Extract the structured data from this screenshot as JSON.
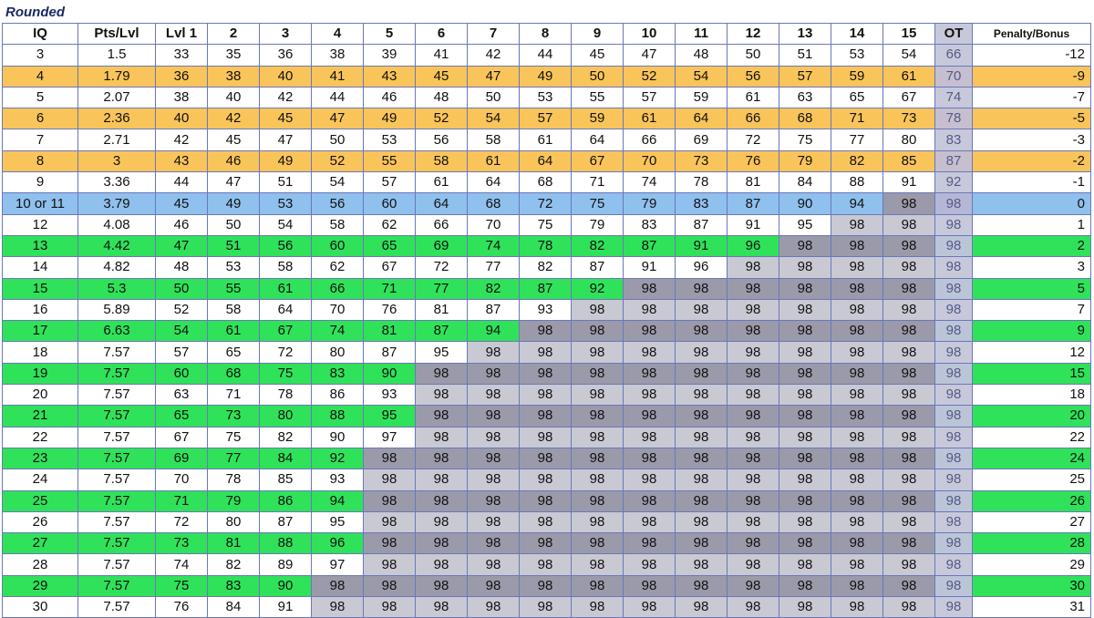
{
  "caption": "Rounded",
  "headers": [
    "IQ",
    "Pts/Lvl",
    "Lvl 1",
    "2",
    "3",
    "4",
    "5",
    "6",
    "7",
    "8",
    "9",
    "10",
    "11",
    "12",
    "13",
    "14",
    "15",
    "OT",
    "Penalty/Bonus"
  ],
  "rows": [
    {
      "style": "white",
      "cells": [
        "3",
        "1.5",
        "33",
        "35",
        "36",
        "38",
        "39",
        "41",
        "42",
        "44",
        "45",
        "47",
        "48",
        "50",
        "51",
        "53",
        "54",
        "66",
        "-12"
      ]
    },
    {
      "style": "orange",
      "cells": [
        "4",
        "1.79",
        "36",
        "38",
        "40",
        "41",
        "43",
        "45",
        "47",
        "49",
        "50",
        "52",
        "54",
        "56",
        "57",
        "59",
        "61",
        "70",
        "-9"
      ]
    },
    {
      "style": "white",
      "cells": [
        "5",
        "2.07",
        "38",
        "40",
        "42",
        "44",
        "46",
        "48",
        "50",
        "53",
        "55",
        "57",
        "59",
        "61",
        "63",
        "65",
        "67",
        "74",
        "-7"
      ]
    },
    {
      "style": "orange",
      "cells": [
        "6",
        "2.36",
        "40",
        "42",
        "45",
        "47",
        "49",
        "52",
        "54",
        "57",
        "59",
        "61",
        "64",
        "66",
        "68",
        "71",
        "73",
        "78",
        "-5"
      ]
    },
    {
      "style": "white",
      "cells": [
        "7",
        "2.71",
        "42",
        "45",
        "47",
        "50",
        "53",
        "56",
        "58",
        "61",
        "64",
        "66",
        "69",
        "72",
        "75",
        "77",
        "80",
        "83",
        "-3"
      ]
    },
    {
      "style": "orange",
      "cells": [
        "8",
        "3",
        "43",
        "46",
        "49",
        "52",
        "55",
        "58",
        "61",
        "64",
        "67",
        "70",
        "73",
        "76",
        "79",
        "82",
        "85",
        "87",
        "-2"
      ]
    },
    {
      "style": "white",
      "cells": [
        "9",
        "3.36",
        "44",
        "47",
        "51",
        "54",
        "57",
        "61",
        "64",
        "68",
        "71",
        "74",
        "78",
        "81",
        "84",
        "88",
        "91",
        "92",
        "-1"
      ]
    },
    {
      "style": "blue",
      "cells": [
        "10 or 11",
        "3.79",
        "45",
        "49",
        "53",
        "56",
        "60",
        "64",
        "68",
        "72",
        "75",
        "79",
        "83",
        "87",
        "90",
        "94",
        "98",
        "98",
        "0"
      ]
    },
    {
      "style": "white",
      "cells": [
        "12",
        "4.08",
        "46",
        "50",
        "54",
        "58",
        "62",
        "66",
        "70",
        "75",
        "79",
        "83",
        "87",
        "91",
        "95",
        "98",
        "98",
        "98",
        "1"
      ]
    },
    {
      "style": "green",
      "cells": [
        "13",
        "4.42",
        "47",
        "51",
        "56",
        "60",
        "65",
        "69",
        "74",
        "78",
        "82",
        "87",
        "91",
        "96",
        "98",
        "98",
        "98",
        "98",
        "2"
      ]
    },
    {
      "style": "white",
      "cells": [
        "14",
        "4.82",
        "48",
        "53",
        "58",
        "62",
        "67",
        "72",
        "77",
        "82",
        "87",
        "91",
        "96",
        "98",
        "98",
        "98",
        "98",
        "98",
        "3"
      ]
    },
    {
      "style": "green",
      "cells": [
        "15",
        "5.3",
        "50",
        "55",
        "61",
        "66",
        "71",
        "77",
        "82",
        "87",
        "92",
        "98",
        "98",
        "98",
        "98",
        "98",
        "98",
        "98",
        "5"
      ]
    },
    {
      "style": "white",
      "cells": [
        "16",
        "5.89",
        "52",
        "58",
        "64",
        "70",
        "76",
        "81",
        "87",
        "93",
        "98",
        "98",
        "98",
        "98",
        "98",
        "98",
        "98",
        "98",
        "7"
      ]
    },
    {
      "style": "green",
      "cells": [
        "17",
        "6.63",
        "54",
        "61",
        "67",
        "74",
        "81",
        "87",
        "94",
        "98",
        "98",
        "98",
        "98",
        "98",
        "98",
        "98",
        "98",
        "98",
        "9"
      ]
    },
    {
      "style": "white",
      "cells": [
        "18",
        "7.57",
        "57",
        "65",
        "72",
        "80",
        "87",
        "95",
        "98",
        "98",
        "98",
        "98",
        "98",
        "98",
        "98",
        "98",
        "98",
        "98",
        "12"
      ]
    },
    {
      "style": "green",
      "cells": [
        "19",
        "7.57",
        "60",
        "68",
        "75",
        "83",
        "90",
        "98",
        "98",
        "98",
        "98",
        "98",
        "98",
        "98",
        "98",
        "98",
        "98",
        "98",
        "15"
      ]
    },
    {
      "style": "white",
      "cells": [
        "20",
        "7.57",
        "63",
        "71",
        "78",
        "86",
        "93",
        "98",
        "98",
        "98",
        "98",
        "98",
        "98",
        "98",
        "98",
        "98",
        "98",
        "98",
        "18"
      ]
    },
    {
      "style": "green",
      "cells": [
        "21",
        "7.57",
        "65",
        "73",
        "80",
        "88",
        "95",
        "98",
        "98",
        "98",
        "98",
        "98",
        "98",
        "98",
        "98",
        "98",
        "98",
        "98",
        "20"
      ]
    },
    {
      "style": "white",
      "cells": [
        "22",
        "7.57",
        "67",
        "75",
        "82",
        "90",
        "97",
        "98",
        "98",
        "98",
        "98",
        "98",
        "98",
        "98",
        "98",
        "98",
        "98",
        "98",
        "22"
      ]
    },
    {
      "style": "green",
      "cells": [
        "23",
        "7.57",
        "69",
        "77",
        "84",
        "92",
        "98",
        "98",
        "98",
        "98",
        "98",
        "98",
        "98",
        "98",
        "98",
        "98",
        "98",
        "98",
        "24"
      ]
    },
    {
      "style": "white",
      "cells": [
        "24",
        "7.57",
        "70",
        "78",
        "85",
        "93",
        "98",
        "98",
        "98",
        "98",
        "98",
        "98",
        "98",
        "98",
        "98",
        "98",
        "98",
        "98",
        "25"
      ]
    },
    {
      "style": "green",
      "cells": [
        "25",
        "7.57",
        "71",
        "79",
        "86",
        "94",
        "98",
        "98",
        "98",
        "98",
        "98",
        "98",
        "98",
        "98",
        "98",
        "98",
        "98",
        "98",
        "26"
      ]
    },
    {
      "style": "white",
      "cells": [
        "26",
        "7.57",
        "72",
        "80",
        "87",
        "95",
        "98",
        "98",
        "98",
        "98",
        "98",
        "98",
        "98",
        "98",
        "98",
        "98",
        "98",
        "98",
        "27"
      ]
    },
    {
      "style": "green",
      "cells": [
        "27",
        "7.57",
        "73",
        "81",
        "88",
        "96",
        "98",
        "98",
        "98",
        "98",
        "98",
        "98",
        "98",
        "98",
        "98",
        "98",
        "98",
        "98",
        "28"
      ]
    },
    {
      "style": "white",
      "cells": [
        "28",
        "7.57",
        "74",
        "82",
        "89",
        "97",
        "98",
        "98",
        "98",
        "98",
        "98",
        "98",
        "98",
        "98",
        "98",
        "98",
        "98",
        "98",
        "29"
      ]
    },
    {
      "style": "green",
      "cells": [
        "29",
        "7.57",
        "75",
        "83",
        "90",
        "98",
        "98",
        "98",
        "98",
        "98",
        "98",
        "98",
        "98",
        "98",
        "98",
        "98",
        "98",
        "98",
        "30"
      ]
    },
    {
      "style": "white",
      "cells": [
        "30",
        "7.57",
        "76",
        "84",
        "91",
        "98",
        "98",
        "98",
        "98",
        "98",
        "98",
        "98",
        "98",
        "98",
        "98",
        "98",
        "98",
        "98",
        "31"
      ]
    }
  ],
  "colors": {
    "orange_row": "#f9c45a",
    "blue_row": "#8fc0ee",
    "green_row": "#2fe25a",
    "capped_cell": "#c9c9d3",
    "ot_column": "#c7c9da",
    "caption": "#1b2a63"
  }
}
